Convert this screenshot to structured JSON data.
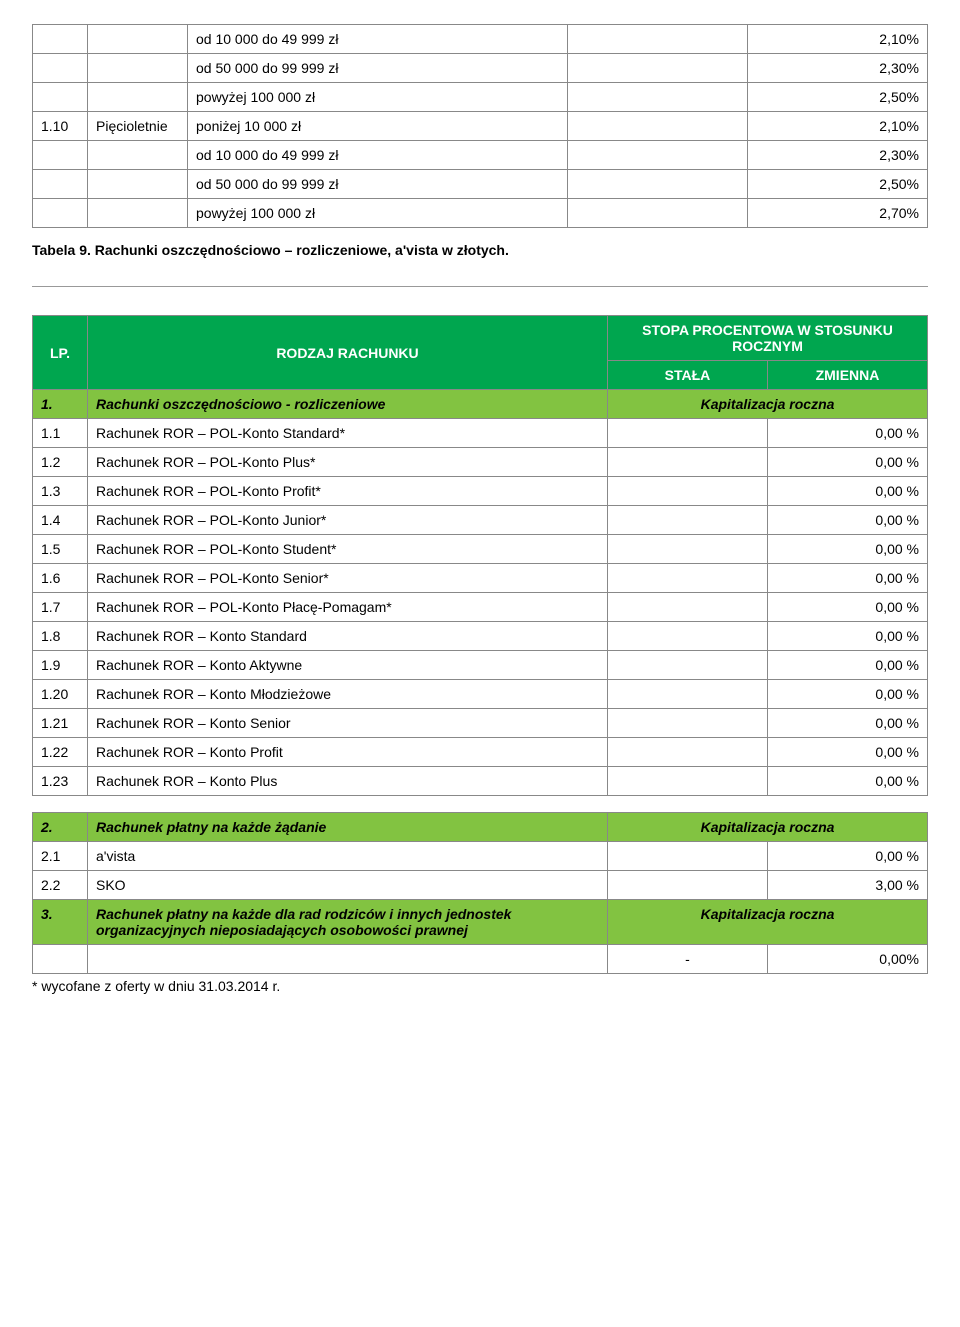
{
  "topTable": {
    "rows": [
      {
        "c1": "",
        "c2": "",
        "c3": "od 10 000 do 49 999 zł",
        "c4": "",
        "c5": "2,10%"
      },
      {
        "c1": "",
        "c2": "",
        "c3": "od 50 000 do 99 999 zł",
        "c4": "",
        "c5": "2,30%"
      },
      {
        "c1": "",
        "c2": "",
        "c3": "powyżej 100 000 zł",
        "c4": "",
        "c5": "2,50%"
      },
      {
        "c1": "1.10",
        "c2": "Pięcioletnie",
        "c3": "poniżej 10 000 zł",
        "c4": "",
        "c5": "2,10%"
      },
      {
        "c1": "",
        "c2": "",
        "c3": "od 10 000 do 49 999 zł",
        "c4": "",
        "c5": "2,30%"
      },
      {
        "c1": "",
        "c2": "",
        "c3": "od 50 000 do 99 999 zł",
        "c4": "",
        "c5": "2,50%"
      },
      {
        "c1": "",
        "c2": "",
        "c3": "powyżej 100 000 zł",
        "c4": "",
        "c5": "2,70%"
      }
    ]
  },
  "caption9": "Tabela 9. Rachunki oszczędnościowo – rozliczeniowe, a'vista w złotych.",
  "mainHeader": {
    "lp": "LP.",
    "rodzaj": "RODZAJ RACHUNKU",
    "stopa": "STOPA PROCENTOWA W STOSUNKU ROCZNYM",
    "stala": "STAŁA",
    "zmienna": "ZMIENNA"
  },
  "section1": {
    "num": "1.",
    "title": "Rachunki oszczędnościowo - rozliczeniowe",
    "sub": "Kapitalizacja roczna",
    "rows": [
      {
        "num": "1.1",
        "label": "Rachunek ROR – POL-Konto Standard*",
        "val": "0,00 %"
      },
      {
        "num": "1.2",
        "label": "Rachunek ROR – POL-Konto Plus*",
        "val": "0,00 %"
      },
      {
        "num": "1.3",
        "label": "Rachunek ROR – POL-Konto Profit*",
        "val": "0,00 %"
      },
      {
        "num": "1.4",
        "label": "Rachunek ROR – POL-Konto Junior*",
        "val": "0,00 %"
      },
      {
        "num": "1.5",
        "label": "Rachunek ROR – POL-Konto Student*",
        "val": "0,00 %"
      },
      {
        "num": "1.6",
        "label": "Rachunek ROR – POL-Konto Senior*",
        "val": "0,00 %"
      },
      {
        "num": "1.7",
        "label": "Rachunek ROR – POL-Konto Płacę-Pomagam*",
        "val": "0,00 %"
      },
      {
        "num": "1.8",
        "label": "Rachunek ROR – Konto Standard",
        "val": "0,00 %"
      },
      {
        "num": "1.9",
        "label": "Rachunek ROR – Konto Aktywne",
        "val": "0,00 %"
      },
      {
        "num": "1.20",
        "label": "Rachunek ROR – Konto Młodzieżowe",
        "val": "0,00 %"
      },
      {
        "num": "1.21",
        "label": "Rachunek ROR – Konto Senior",
        "val": "0,00 %"
      },
      {
        "num": "1.22",
        "label": "Rachunek ROR – Konto Profit",
        "val": "0,00 %"
      },
      {
        "num": "1.23",
        "label": "Rachunek ROR – Konto Plus",
        "val": "0,00 %"
      }
    ]
  },
  "section2": {
    "num": "2.",
    "title": "Rachunek płatny na każde żądanie",
    "sub": "Kapitalizacja roczna",
    "rows": [
      {
        "num": "2.1",
        "label": "a'vista",
        "val": "0,00 %"
      },
      {
        "num": "2.2",
        "label": "SKO",
        "val": "3,00 %"
      }
    ]
  },
  "section3": {
    "num": "3.",
    "title": "Rachunek płatny na każde dla rad rodziców i innych jednostek organizacyjnych nieposiadających osobowości prawnej",
    "sub": "Kapitalizacja roczna",
    "dash": "-",
    "val": "0,00%"
  },
  "footnote": "* wycofane z oferty w dniu 31.03.2014 r.",
  "colors": {
    "dark": "#00a64f",
    "light": "#82c341",
    "border": "#888888"
  }
}
